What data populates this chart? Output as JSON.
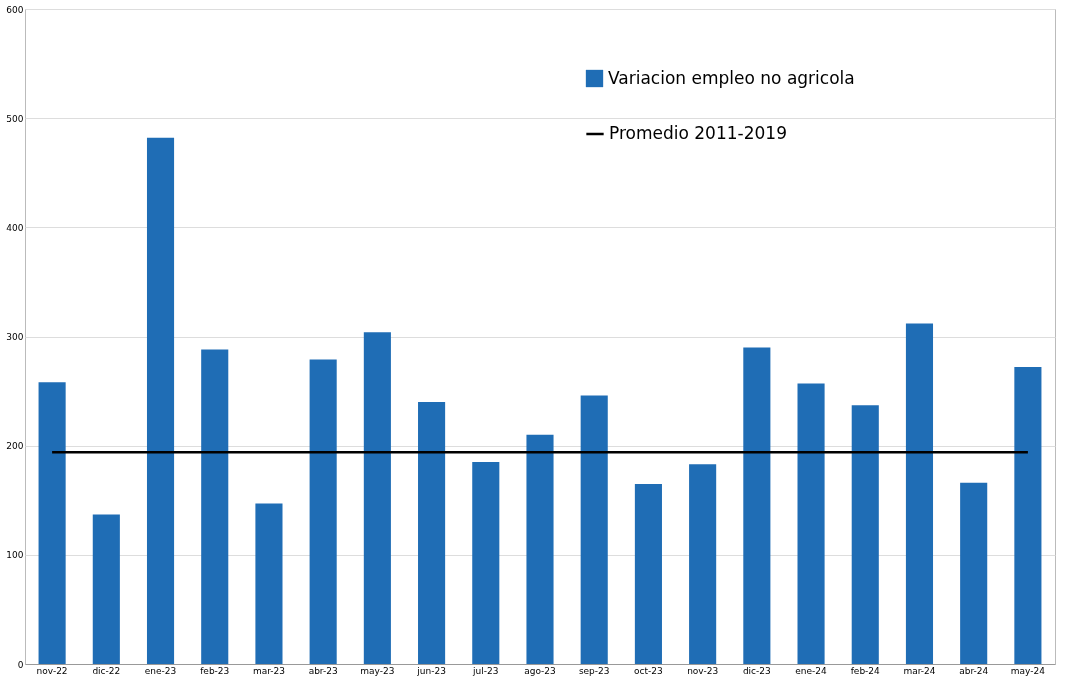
{
  "chart_data": {
    "type": "bar",
    "categories": [
      "nov-22",
      "dic-22",
      "ene-23",
      "feb-23",
      "mar-23",
      "abr-23",
      "may-23",
      "jun-23",
      "jul-23",
      "ago-23",
      "sep-23",
      "oct-23",
      "nov-23",
      "dic-23",
      "ene-24",
      "feb-24",
      "mar-24",
      "abr-24",
      "may-24"
    ],
    "series": [
      {
        "name": "Variacion empleo no agricola",
        "color": "#1f6db5",
        "values": [
          258,
          137,
          482,
          288,
          147,
          279,
          304,
          240,
          185,
          210,
          246,
          165,
          183,
          290,
          257,
          237,
          312,
          166,
          272
        ]
      },
      {
        "name": "Promedio 2011-2019",
        "type": "line",
        "color": "#000000",
        "values": [
          194,
          194,
          194,
          194,
          194,
          194,
          194,
          194,
          194,
          194,
          194,
          194,
          194,
          194,
          194,
          194,
          194,
          194,
          194
        ]
      }
    ],
    "ylim": [
      0,
      600
    ],
    "yticks": [
      0,
      100,
      200,
      300,
      400,
      500,
      600
    ],
    "grid": "y",
    "legend": "top right"
  }
}
